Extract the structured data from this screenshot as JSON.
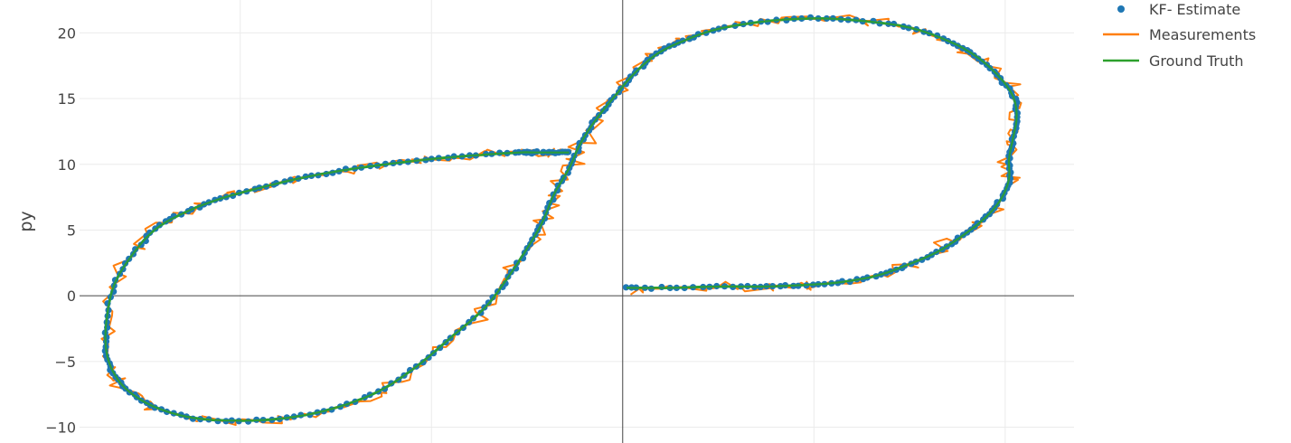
{
  "chart_data": {
    "type": "line",
    "title": "",
    "xlabel": "",
    "ylabel": "py",
    "xlim": [
      -14.2,
      11.8
    ],
    "ylim": [
      -11.2,
      22.5
    ],
    "yticks": [
      -10,
      -5,
      0,
      5,
      10,
      15,
      20
    ],
    "ytick_labels": [
      "−10",
      "−5",
      "0",
      "5",
      "10",
      "15",
      "20"
    ],
    "xgrid": [
      -10,
      -5,
      0,
      5,
      10
    ],
    "grid": true,
    "zeroline": true,
    "legend": "top-right",
    "series": [
      {
        "name": "KF- Estimate",
        "mode": "markers",
        "color": "#1f77b4"
      },
      {
        "name": "Measurements",
        "mode": "line",
        "color": "#ff7f0e"
      },
      {
        "name": "Ground Truth",
        "mode": "line",
        "color": "#2ca02c"
      }
    ],
    "path_x": [
      0.1,
      1.2,
      2.5,
      3.6,
      4.6,
      5.6,
      6.6,
      7.4,
      8.2,
      8.9,
      9.5,
      9.9,
      10.1,
      10.1,
      10.2,
      10.3,
      10.2,
      9.8,
      9.2,
      8.5,
      7.5,
      6.3,
      5.1,
      3.8,
      2.5,
      1.6,
      0.9,
      0.3,
      -0.2,
      -0.7,
      -1.1,
      -1.4,
      -1.8,
      -2.1,
      -2.5,
      -3.0,
      -3.6,
      -4.5,
      -5.4,
      -6.4,
      -7.6,
      -8.8,
      -10.0,
      -11.2,
      -12.2,
      -12.9,
      -13.3,
      -13.5,
      -13.5,
      -13.3,
      -12.8,
      -12.2,
      -11.4,
      -10.5,
      -9.5,
      -8.5,
      -7.4,
      -6.2,
      -5.0,
      -3.8,
      -2.7,
      -2.3,
      -1.8,
      -1.4
    ],
    "path_y": [
      0.6,
      0.6,
      0.7,
      0.7,
      0.8,
      1.0,
      1.5,
      2.3,
      3.3,
      4.6,
      6.0,
      7.4,
      8.9,
      10.4,
      11.9,
      13.6,
      15.2,
      16.8,
      18.3,
      19.4,
      20.4,
      20.9,
      21.1,
      20.9,
      20.3,
      19.4,
      18.4,
      16.9,
      15.2,
      13.4,
      11.6,
      9.7,
      7.7,
      5.6,
      3.6,
      1.4,
      -0.9,
      -3.2,
      -5.4,
      -7.3,
      -8.6,
      -9.3,
      -9.5,
      -9.3,
      -8.5,
      -7.3,
      -5.9,
      -4.2,
      -2.0,
      0.8,
      3.2,
      5.1,
      6.4,
      7.4,
      8.2,
      8.9,
      9.5,
      10.0,
      10.4,
      10.7,
      10.9,
      10.9,
      10.9,
      10.9
    ]
  }
}
